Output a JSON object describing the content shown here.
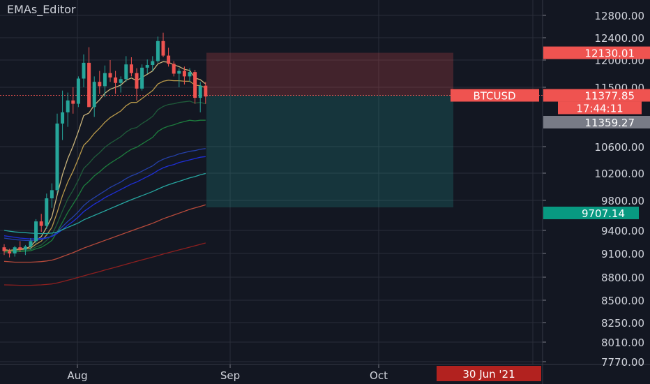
{
  "chart_data": {
    "type": "candlestick",
    "title": "EMAs_Editor",
    "symbol": "BTCUSD",
    "colors": {
      "background": "#131722",
      "up": "#26a69a",
      "down": "#ef5350",
      "grid": "#2a2e39",
      "axis_text": "#d1d4dc",
      "stop_zone": "rgba(239,83,80,0.22)",
      "target_zone": "rgba(38,166,154,0.22)",
      "current_price": "#ef5350",
      "target_price": "#089981",
      "countdown_bg": "#ef5350",
      "ema_price_bg": "#787b86",
      "date_label_bg": "#b2221f"
    },
    "x_axis": {
      "labels": [
        "Aug",
        "Sep",
        "Oct"
      ]
    },
    "y_axis": {
      "tick_labels": [
        "12800.00",
        "12400.00",
        "12000.00",
        "11500.00",
        "10600.00",
        "10200.00",
        "9800.00",
        "9400.00",
        "9100.00",
        "8800.00",
        "8500.00",
        "8250.00",
        "8010.00",
        "7770.00"
      ],
      "tick_values": [
        12800,
        12400,
        12000,
        11500,
        10600,
        10200,
        9800,
        9400,
        9100,
        8800,
        8500,
        8250,
        8010,
        7770
      ]
    },
    "price_labels": {
      "stop": "12130.01",
      "current_symbol": "BTCUSD",
      "current": "11377.85",
      "countdown": "17:44:11",
      "ema": "11359.27",
      "target": "9707.14",
      "date": "30 Jun '21"
    },
    "position": {
      "entry": 11377.85,
      "stop": 12130.01,
      "target": 9707.14
    },
    "candles": [
      [
        9180,
        9220,
        9080,
        9130
      ],
      [
        9130,
        9160,
        9050,
        9100
      ],
      [
        9100,
        9200,
        9060,
        9180
      ],
      [
        9180,
        9260,
        9120,
        9150
      ],
      [
        9150,
        9210,
        9080,
        9190
      ],
      [
        9190,
        9300,
        9150,
        9260
      ],
      [
        9260,
        9550,
        9230,
        9520
      ],
      [
        9520,
        9620,
        9380,
        9460
      ],
      [
        9460,
        9900,
        9420,
        9830
      ],
      [
        9830,
        10050,
        9700,
        9950
      ],
      [
        9950,
        11100,
        9900,
        10950
      ],
      [
        10950,
        11450,
        10700,
        11120
      ],
      [
        11120,
        11420,
        10900,
        11300
      ],
      [
        11300,
        11500,
        11100,
        11250
      ],
      [
        11250,
        11700,
        11200,
        11660
      ],
      [
        11660,
        12100,
        11500,
        11950
      ],
      [
        11950,
        12230,
        11200,
        11200
      ],
      [
        11200,
        11700,
        11050,
        11600
      ],
      [
        11600,
        11800,
        11400,
        11520
      ],
      [
        11520,
        11900,
        11350,
        11760
      ],
      [
        11760,
        12000,
        11600,
        11680
      ],
      [
        11680,
        11800,
        11400,
        11580
      ],
      [
        11580,
        11700,
        11420,
        11650
      ],
      [
        11650,
        12070,
        11600,
        11920
      ],
      [
        11920,
        12050,
        11700,
        11760
      ],
      [
        11760,
        11850,
        11300,
        11480
      ],
      [
        11480,
        11920,
        11450,
        11860
      ],
      [
        11860,
        12010,
        11750,
        11910
      ],
      [
        11910,
        12070,
        11800,
        11980
      ],
      [
        11980,
        12420,
        11950,
        12340
      ],
      [
        12340,
        12490,
        12050,
        12080
      ],
      [
        12080,
        12220,
        11880,
        11930
      ],
      [
        11930,
        11980,
        11700,
        11750
      ],
      [
        11750,
        11850,
        11500,
        11800
      ],
      [
        11800,
        11880,
        11550,
        11700
      ],
      [
        11700,
        11850,
        11600,
        11780
      ],
      [
        11780,
        11820,
        11250,
        11340
      ],
      [
        11340,
        11600,
        11120,
        11530
      ],
      [
        11530,
        11600,
        11250,
        11360
      ]
    ],
    "ema_lines": [
      {
        "color": "#c9b37a",
        "values": [
          9150,
          9140,
          9150,
          9160,
          9165,
          9190,
          9270,
          9320,
          9440,
          9580,
          9880,
          10180,
          10420,
          10610,
          10830,
          11070,
          11110,
          11230,
          11310,
          11410,
          11470,
          11500,
          11540,
          11630,
          11670,
          11620,
          11680,
          11740,
          11800,
          11930,
          11970,
          11960,
          11910,
          11880,
          11830,
          11810,
          11670,
          11640,
          11560
        ]
      },
      {
        "color": "#b8994a",
        "values": [
          9140,
          9140,
          9145,
          9150,
          9155,
          9170,
          9220,
          9260,
          9340,
          9440,
          9640,
          9870,
          10070,
          10230,
          10420,
          10620,
          10700,
          10800,
          10880,
          10970,
          11040,
          11090,
          11140,
          11220,
          11270,
          11270,
          11330,
          11390,
          11450,
          11560,
          11610,
          11630,
          11620,
          11620,
          11610,
          11610,
          11540,
          11530,
          11490
        ]
      },
      {
        "color": "#1f5b3a",
        "values": [
          9130,
          9130,
          9132,
          9136,
          9140,
          9150,
          9185,
          9210,
          9270,
          9340,
          9490,
          9660,
          9820,
          9950,
          10100,
          10270,
          10350,
          10440,
          10510,
          10590,
          10650,
          10700,
          10750,
          10820,
          10870,
          10890,
          10950,
          11000,
          11060,
          11160,
          11210,
          11240,
          11250,
          11270,
          11280,
          11290,
          11260,
          11270,
          11250
        ]
      },
      {
        "color": "#1d7e3e",
        "values": [
          9120,
          9120,
          9122,
          9125,
          9128,
          9135,
          9160,
          9180,
          9220,
          9270,
          9380,
          9510,
          9640,
          9750,
          9870,
          10010,
          10080,
          10160,
          10220,
          10290,
          10350,
          10400,
          10450,
          10510,
          10560,
          10590,
          10640,
          10690,
          10740,
          10830,
          10880,
          10910,
          10930,
          10960,
          10980,
          11000,
          10990,
          11000,
          11000
        ]
      },
      {
        "color": "#2540a8",
        "values": [
          9300,
          9290,
          9280,
          9275,
          9270,
          9268,
          9275,
          9280,
          9300,
          9325,
          9380,
          9450,
          9520,
          9580,
          9650,
          9730,
          9790,
          9840,
          9890,
          9940,
          9990,
          10030,
          10070,
          10120,
          10160,
          10190,
          10230,
          10270,
          10310,
          10370,
          10410,
          10440,
          10460,
          10490,
          10510,
          10530,
          10540,
          10560,
          10570
        ]
      },
      {
        "color": "#1e2fd9",
        "values": [
          9330,
          9320,
          9310,
          9300,
          9295,
          9290,
          9292,
          9295,
          9305,
          9320,
          9360,
          9410,
          9470,
          9520,
          9580,
          9650,
          9700,
          9750,
          9790,
          9840,
          9880,
          9920,
          9960,
          10000,
          10040,
          10070,
          10110,
          10150,
          10190,
          10240,
          10280,
          10310,
          10330,
          10360,
          10380,
          10400,
          10420,
          10440,
          10450
        ]
      },
      {
        "color": "#26a6a0",
        "values": [
          9400,
          9390,
          9380,
          9375,
          9370,
          9365,
          9360,
          9358,
          9360,
          9365,
          9380,
          9410,
          9440,
          9470,
          9500,
          9540,
          9570,
          9600,
          9630,
          9660,
          9690,
          9720,
          9750,
          9780,
          9810,
          9840,
          9870,
          9900,
          9930,
          9965,
          10000,
          10030,
          10055,
          10080,
          10105,
          10130,
          10150,
          10175,
          10195
        ]
      },
      {
        "color": "#b74a3b",
        "values": [
          9000,
          8995,
          8990,
          8990,
          8990,
          8990,
          8993,
          8997,
          9005,
          9015,
          9035,
          9060,
          9085,
          9110,
          9140,
          9170,
          9195,
          9220,
          9245,
          9270,
          9295,
          9320,
          9345,
          9370,
          9395,
          9420,
          9445,
          9470,
          9495,
          9525,
          9555,
          9580,
          9605,
          9630,
          9655,
          9680,
          9700,
          9720,
          9740
        ]
      },
      {
        "color": "#8e1f1f",
        "values": [
          8700,
          8698,
          8696,
          8695,
          8695,
          8695,
          8697,
          8700,
          8705,
          8712,
          8725,
          8742,
          8760,
          8778,
          8797,
          8817,
          8835,
          8853,
          8871,
          8890,
          8908,
          8926,
          8945,
          8963,
          8982,
          9000,
          9018,
          9036,
          9054,
          9073,
          9092,
          9110,
          9128,
          9146,
          9164,
          9182,
          9200,
          9218,
          9236
        ]
      }
    ]
  }
}
